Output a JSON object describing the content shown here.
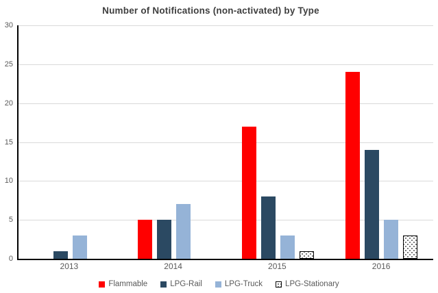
{
  "title": "Number of Notifications (non-activated) by Type",
  "chart_data": {
    "type": "bar",
    "title": "Number of Notifications (non-activated) by Type",
    "categories": [
      "2013",
      "2014",
      "2015",
      "2016"
    ],
    "series": [
      {
        "name": "Flammable",
        "color": "#ff0000",
        "pattern": "solid",
        "values": [
          0,
          5,
          17,
          24
        ]
      },
      {
        "name": "LPG-Rail",
        "color": "#2b4962",
        "pattern": "solid",
        "values": [
          1,
          5,
          8,
          14
        ]
      },
      {
        "name": "LPG-Truck",
        "color": "#95b3d7",
        "pattern": "solid",
        "values": [
          3,
          7,
          3,
          5
        ]
      },
      {
        "name": "LPG-Stationary",
        "color": "#ffffff",
        "pattern": "dotted",
        "values": [
          0,
          0,
          1,
          3
        ]
      }
    ],
    "xlabel": "",
    "ylabel": "",
    "ylim": [
      0,
      30
    ],
    "yticks": [
      0,
      5,
      10,
      15,
      20,
      25,
      30
    ],
    "grid": true,
    "legend_position": "bottom"
  },
  "colors": {
    "grid": "#d9d9d9",
    "axis": "#000000",
    "tick_label": "#595959",
    "title_text": "#3f3f3f",
    "background": "#ffffff"
  }
}
